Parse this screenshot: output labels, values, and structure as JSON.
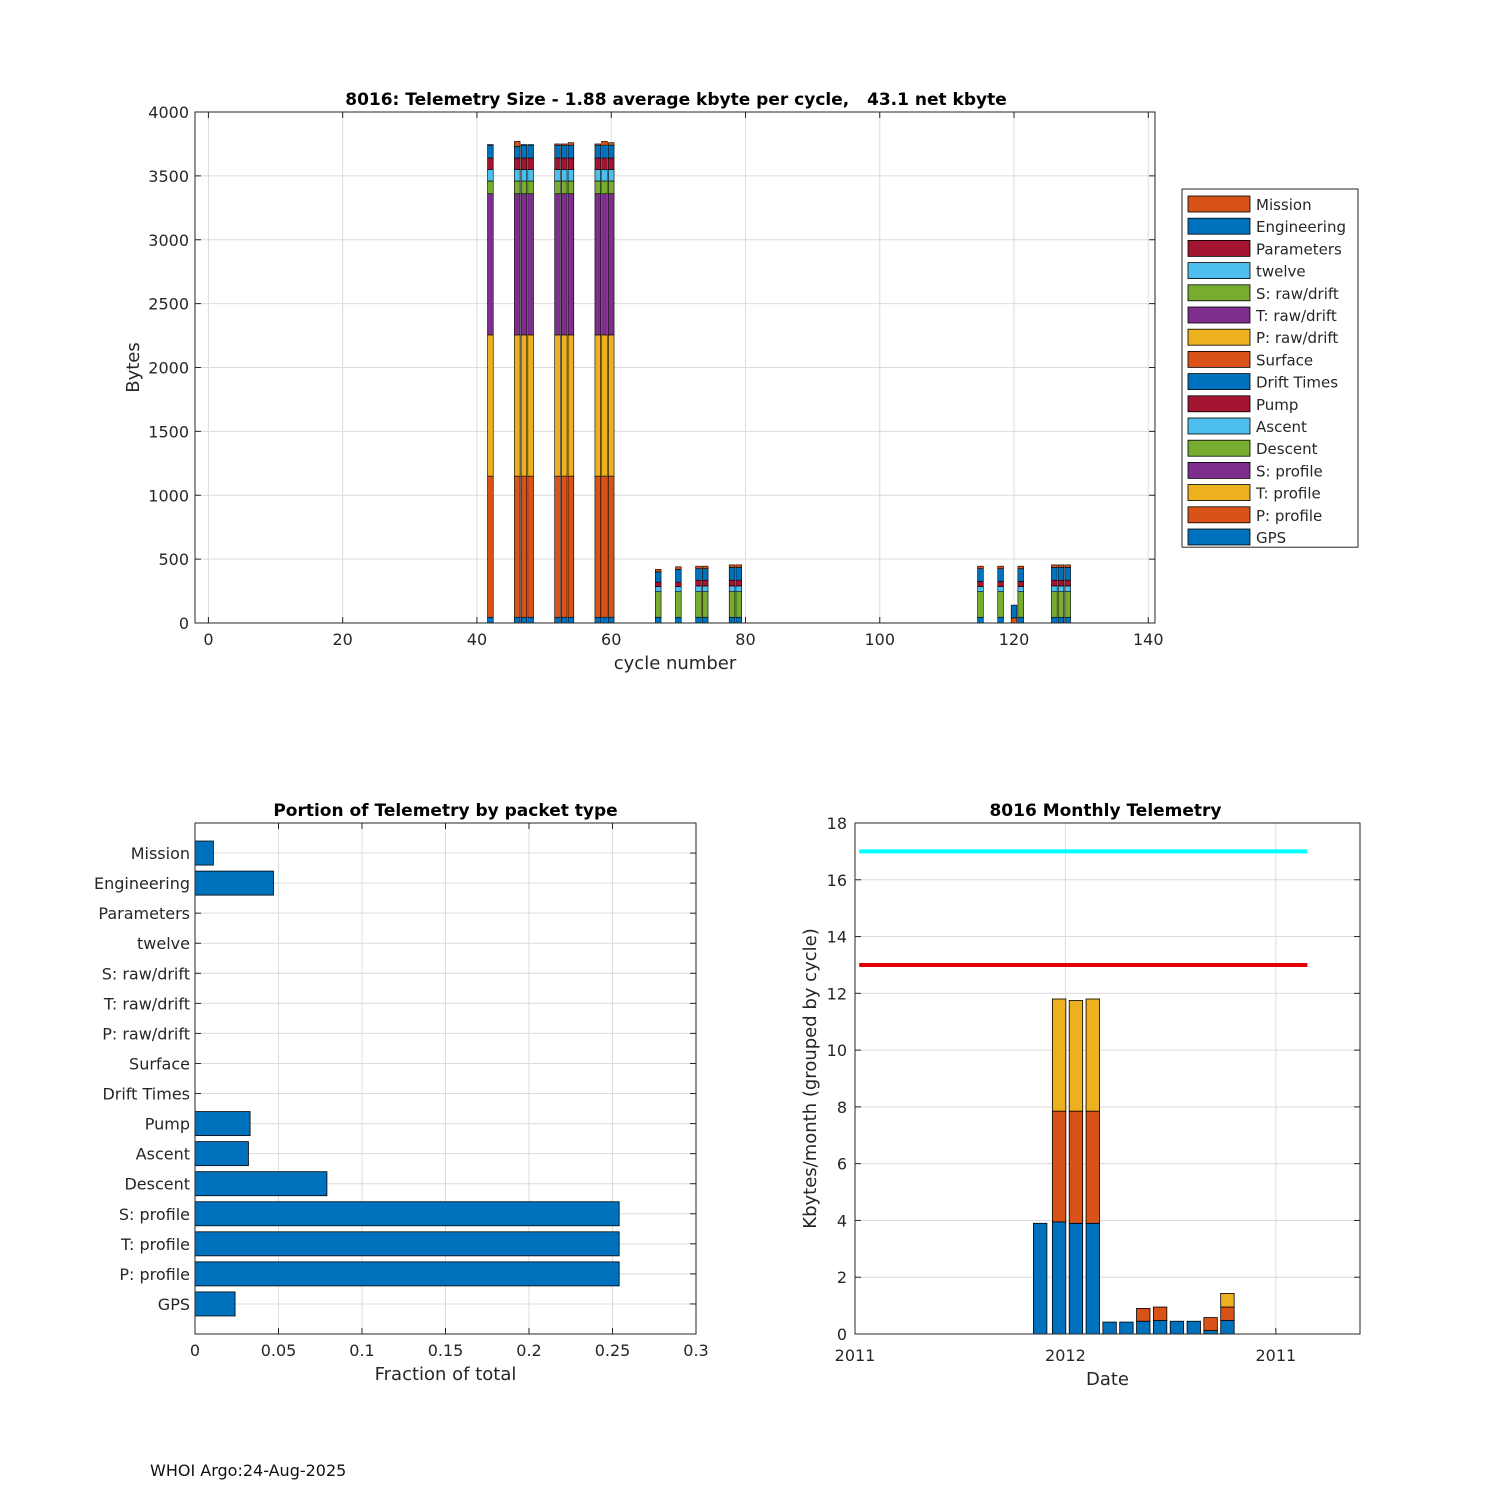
{
  "footer": "WHOI Argo:24-Aug-2025",
  "chart_data": [
    {
      "id": "telemetry-size",
      "type": "bar",
      "stacked": true,
      "title": "8016: Telemetry Size - 1.88 average kbyte per cycle,   43.1 net kbyte",
      "xlabel": "cycle number",
      "ylabel": "Bytes",
      "xlim": [
        -2,
        141
      ],
      "ylim": [
        0,
        4000
      ],
      "xticks": [
        0,
        20,
        40,
        60,
        80,
        100,
        120,
        140
      ],
      "yticks": [
        0,
        500,
        1000,
        1500,
        2000,
        2500,
        3000,
        3500,
        4000
      ],
      "grid": true,
      "legend_position": "right",
      "legend": [
        "Mission",
        "Engineering",
        "Parameters",
        "twelve",
        "S: raw/drift",
        "T: raw/drift",
        "P: raw/drift",
        "Surface",
        "Drift Times",
        "Pump",
        "Ascent",
        "Descent",
        "S: profile",
        "T: profile",
        "P: profile",
        "GPS"
      ],
      "colors": {
        "GPS": "#0072BD",
        "P: profile": "#D95319",
        "T: profile": "#EDB120",
        "S: profile": "#7E2F8E",
        "Descent": "#77AC30",
        "Ascent": "#4DBEEE",
        "Pump": "#A2142F",
        "Drift Times": "#0072BD",
        "Surface": "#D95319",
        "P: raw/drift": "#EDB120",
        "T: raw/drift": "#7E2F8E",
        "S: raw/drift": "#77AC30",
        "twelve": "#4DBEEE",
        "Parameters": "#A2142F",
        "Engineering": "#0072BD",
        "Mission": "#D95319"
      },
      "stack_order": [
        "GPS",
        "P: profile",
        "T: profile",
        "S: profile",
        "Descent",
        "Ascent",
        "Pump",
        "Engineering",
        "Mission"
      ],
      "cycles": [
        {
          "cycle": 42,
          "values": [
            45,
            1105,
            1105,
            1105,
            100,
            90,
            90,
            100,
            5
          ]
        },
        {
          "cycle": 46,
          "values": [
            45,
            1105,
            1105,
            1105,
            100,
            90,
            90,
            90,
            40
          ]
        },
        {
          "cycle": 47,
          "values": [
            45,
            1105,
            1105,
            1105,
            100,
            90,
            90,
            100,
            5
          ]
        },
        {
          "cycle": 48,
          "values": [
            45,
            1105,
            1105,
            1105,
            100,
            90,
            90,
            100,
            5
          ]
        },
        {
          "cycle": 52,
          "values": [
            45,
            1105,
            1105,
            1105,
            100,
            90,
            90,
            100,
            10
          ]
        },
        {
          "cycle": 53,
          "values": [
            45,
            1105,
            1105,
            1105,
            100,
            90,
            90,
            100,
            10
          ]
        },
        {
          "cycle": 54,
          "values": [
            45,
            1105,
            1105,
            1105,
            100,
            90,
            90,
            100,
            20
          ]
        },
        {
          "cycle": 58,
          "values": [
            45,
            1105,
            1105,
            1105,
            100,
            90,
            90,
            100,
            10
          ]
        },
        {
          "cycle": 59,
          "values": [
            45,
            1105,
            1105,
            1105,
            100,
            90,
            90,
            100,
            30
          ]
        },
        {
          "cycle": 60,
          "values": [
            45,
            1105,
            1105,
            1105,
            100,
            90,
            90,
            100,
            20
          ]
        },
        {
          "cycle": 67,
          "values": [
            45,
            0,
            0,
            0,
            200,
            40,
            35,
            80,
            20
          ]
        },
        {
          "cycle": 70,
          "values": [
            45,
            0,
            0,
            0,
            200,
            40,
            35,
            100,
            20
          ]
        },
        {
          "cycle": 73,
          "values": [
            45,
            0,
            0,
            0,
            200,
            45,
            45,
            90,
            20
          ]
        },
        {
          "cycle": 74,
          "values": [
            45,
            0,
            0,
            0,
            200,
            45,
            45,
            90,
            20
          ]
        },
        {
          "cycle": 78,
          "values": [
            45,
            0,
            0,
            0,
            200,
            45,
            45,
            100,
            20
          ]
        },
        {
          "cycle": 79,
          "values": [
            45,
            0,
            0,
            0,
            200,
            45,
            45,
            100,
            20
          ]
        },
        {
          "cycle": 115,
          "values": [
            45,
            0,
            0,
            0,
            200,
            40,
            40,
            100,
            20
          ]
        },
        {
          "cycle": 118,
          "values": [
            45,
            0,
            0,
            0,
            200,
            40,
            40,
            100,
            20
          ]
        },
        {
          "cycle": 120,
          "values": [
            0,
            40,
            0,
            0,
            0,
            0,
            0,
            100,
            0
          ]
        },
        {
          "cycle": 121,
          "values": [
            45,
            0,
            0,
            0,
            200,
            40,
            40,
            100,
            20
          ]
        },
        {
          "cycle": 126,
          "values": [
            45,
            0,
            0,
            0,
            200,
            45,
            45,
            100,
            20
          ]
        },
        {
          "cycle": 127,
          "values": [
            45,
            0,
            0,
            0,
            200,
            45,
            45,
            100,
            20
          ]
        },
        {
          "cycle": 128,
          "values": [
            45,
            0,
            0,
            0,
            200,
            45,
            45,
            100,
            20
          ]
        }
      ]
    },
    {
      "id": "packet-portion",
      "type": "bar",
      "orientation": "horizontal",
      "title": "Portion of Telemetry by packet type",
      "xlabel": "Fraction of total",
      "xlim": [
        0,
        0.3
      ],
      "xticks": [
        0,
        0.05,
        0.1,
        0.15,
        0.2,
        0.25,
        0.3
      ],
      "xtick_labels": [
        "0",
        "0.05",
        "0.1",
        "0.15",
        "0.2",
        "0.25",
        "0.3"
      ],
      "grid": true,
      "color": "#0072BD",
      "categories": [
        "Mission",
        "Engineering",
        "Parameters",
        "twelve",
        "S: raw/drift",
        "T: raw/drift",
        "P: raw/drift",
        "Surface",
        "Drift Times",
        "Pump",
        "Ascent",
        "Descent",
        "S: profile",
        "T: profile",
        "P: profile",
        "GPS"
      ],
      "values": [
        0.011,
        0.047,
        0,
        0,
        0,
        0,
        0,
        0,
        0,
        0.033,
        0.032,
        0.079,
        0.254,
        0.254,
        0.254,
        0.024
      ]
    },
    {
      "id": "monthly-telemetry",
      "type": "bar",
      "stacked": true,
      "title": "8016 Monthly Telemetry",
      "xlabel": "Date",
      "ylabel": "Kbytes/month (grouped by cycle)",
      "ylim": [
        0,
        18
      ],
      "yticks": [
        0,
        2,
        4,
        6,
        8,
        10,
        12,
        14,
        16,
        18
      ],
      "x_index_range": [
        0,
        24
      ],
      "xticks": [
        {
          "pos": 0,
          "label": "2011"
        },
        {
          "pos": 10,
          "label": "2012"
        },
        {
          "pos": 20,
          "label": "2011"
        }
      ],
      "grid": true,
      "series_colors": [
        "#0072BD",
        "#D95319",
        "#EDB120"
      ],
      "hlines": [
        {
          "value": 17,
          "color": "#00FFFF",
          "from": 0.2,
          "to": 21.5
        },
        {
          "value": 13,
          "color": "#E00000",
          "from": 0.2,
          "to": 21.5
        }
      ],
      "bars": [
        {
          "pos": 8.8,
          "values": [
            3.9,
            0,
            0
          ]
        },
        {
          "pos": 9.7,
          "values": [
            3.95,
            3.9,
            3.95
          ]
        },
        {
          "pos": 10.5,
          "values": [
            3.9,
            3.95,
            3.9
          ]
        },
        {
          "pos": 11.3,
          "values": [
            3.9,
            3.95,
            3.95
          ]
        },
        {
          "pos": 12.1,
          "values": [
            0.42,
            0,
            0
          ]
        },
        {
          "pos": 12.9,
          "values": [
            0.42,
            0,
            0
          ]
        },
        {
          "pos": 13.7,
          "values": [
            0.45,
            0.45,
            0
          ]
        },
        {
          "pos": 14.5,
          "values": [
            0.48,
            0.47,
            0
          ]
        },
        {
          "pos": 15.3,
          "values": [
            0.45,
            0,
            0
          ]
        },
        {
          "pos": 16.1,
          "values": [
            0.45,
            0,
            0
          ]
        },
        {
          "pos": 16.9,
          "values": [
            0.12,
            0.46,
            0
          ]
        },
        {
          "pos": 17.7,
          "values": [
            0.48,
            0.47,
            0.48
          ]
        }
      ]
    }
  ]
}
